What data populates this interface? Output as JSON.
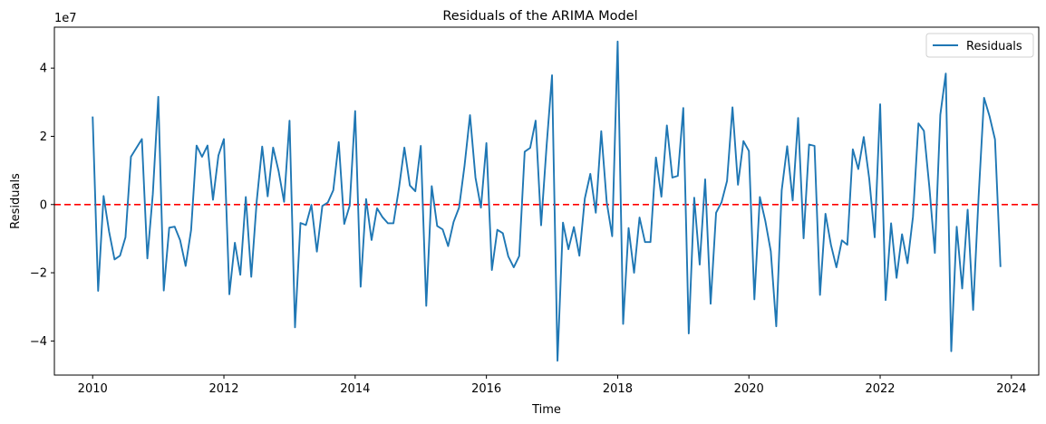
{
  "chart_data": {
    "type": "line",
    "title": "Residuals of the ARIMA Model",
    "xlabel": "Time",
    "ylabel": "Residuals",
    "y_scale_label": "1e7",
    "xlim": [
      "2009-06-01",
      "2024-06-01"
    ],
    "ylim": [
      -50000000,
      52000000
    ],
    "x_ticks": [
      "2010",
      "2012",
      "2014",
      "2016",
      "2018",
      "2020",
      "2022",
      "2024"
    ],
    "y_ticks": [
      "−4",
      "−2",
      "0",
      "2",
      "4"
    ],
    "legend": {
      "position": "top-right",
      "entries": [
        "Residuals"
      ]
    },
    "reference_line": {
      "y": 0,
      "style": "dashed",
      "color": "#ff0000"
    },
    "series": [
      {
        "name": "Residuals",
        "color": "#1f77b4",
        "x": [
          "2010-01",
          "2010-02",
          "2010-03",
          "2010-04",
          "2010-05",
          "2010-06",
          "2010-07",
          "2010-08",
          "2010-09",
          "2010-10",
          "2010-11",
          "2010-12",
          "2011-01",
          "2011-02",
          "2011-03",
          "2011-04",
          "2011-05",
          "2011-06",
          "2011-07",
          "2011-08",
          "2011-09",
          "2011-10",
          "2011-11",
          "2011-12",
          "2012-01",
          "2012-02",
          "2012-03",
          "2012-04",
          "2012-05",
          "2012-06",
          "2012-07",
          "2012-08",
          "2012-09",
          "2012-10",
          "2012-11",
          "2012-12",
          "2013-01",
          "2013-02",
          "2013-03",
          "2013-04",
          "2013-05",
          "2013-06",
          "2013-07",
          "2013-08",
          "2013-09",
          "2013-10",
          "2013-11",
          "2013-12",
          "2014-01",
          "2014-02",
          "2014-03",
          "2014-04",
          "2014-05",
          "2014-06",
          "2014-07",
          "2014-08",
          "2014-09",
          "2014-10",
          "2014-11",
          "2014-12",
          "2015-01",
          "2015-02",
          "2015-03",
          "2015-04",
          "2015-05",
          "2015-06",
          "2015-07",
          "2015-08",
          "2015-09",
          "2015-10",
          "2015-11",
          "2015-12",
          "2016-01",
          "2016-02",
          "2016-03",
          "2016-04",
          "2016-05",
          "2016-06",
          "2016-07",
          "2016-08",
          "2016-09",
          "2016-10",
          "2016-11",
          "2016-12",
          "2017-01",
          "2017-02",
          "2017-03",
          "2017-04",
          "2017-05",
          "2017-06",
          "2017-07",
          "2017-08",
          "2017-09",
          "2017-10",
          "2017-11",
          "2017-12",
          "2018-01",
          "2018-02",
          "2018-03",
          "2018-04",
          "2018-05",
          "2018-06",
          "2018-07",
          "2018-08",
          "2018-09",
          "2018-10",
          "2018-11",
          "2018-12",
          "2019-01",
          "2019-02",
          "2019-03",
          "2019-04",
          "2019-05",
          "2019-06",
          "2019-07",
          "2019-08",
          "2019-09",
          "2019-10",
          "2019-11",
          "2019-12",
          "2020-01",
          "2020-02",
          "2020-03",
          "2020-04",
          "2020-05",
          "2020-06",
          "2020-07",
          "2020-08",
          "2020-09",
          "2020-10",
          "2020-11",
          "2020-12",
          "2021-01",
          "2021-02",
          "2021-03",
          "2021-04",
          "2021-05",
          "2021-06",
          "2021-07",
          "2021-08",
          "2021-09",
          "2021-10",
          "2021-11",
          "2021-12",
          "2022-01",
          "2022-02",
          "2022-03",
          "2022-04",
          "2022-05",
          "2022-06",
          "2022-07",
          "2022-08",
          "2022-09",
          "2022-10",
          "2022-11",
          "2022-12",
          "2023-01",
          "2023-02",
          "2023-03",
          "2023-04",
          "2023-05",
          "2023-06",
          "2023-07",
          "2023-08",
          "2023-09",
          "2023-10",
          "2023-11"
        ],
        "values": [
          25800000,
          -25300000,
          2500000,
          -7900000,
          -16100000,
          -15000000,
          -9600000,
          14000000,
          16600000,
          19200000,
          -15800000,
          3100000,
          31600000,
          -25200000,
          -6800000,
          -6500000,
          -10500000,
          -18000000,
          -7500000,
          17300000,
          14000000,
          17300000,
          1400000,
          14400000,
          19200000,
          -26300000,
          -11200000,
          -20600000,
          2200000,
          -21200000,
          1000000,
          17000000,
          2400000,
          16700000,
          9800000,
          800000,
          24600000,
          -36000000,
          -5400000,
          -6000000,
          -100000,
          -13800000,
          -400000,
          600000,
          4200000,
          18300000,
          -5700000,
          -300000,
          27400000,
          -24100000,
          1600000,
          -10400000,
          -1100000,
          -3700000,
          -5500000,
          -5500000,
          4700000,
          16700000,
          5600000,
          3900000,
          17200000,
          -29700000,
          5400000,
          -6300000,
          -7300000,
          -12200000,
          -5100000,
          -900000,
          11400000,
          26200000,
          7900000,
          -900000,
          18000000,
          -19200000,
          -7400000,
          -8400000,
          -15200000,
          -18400000,
          -15100000,
          15500000,
          16600000,
          24600000,
          -6100000,
          17100000,
          37900000,
          -45800000,
          -5300000,
          -13100000,
          -6600000,
          -15000000,
          1800000,
          9000000,
          -2400000,
          21500000,
          700000,
          -9300000,
          47800000,
          -35000000,
          -6900000,
          -20000000,
          -3800000,
          -11000000,
          -11000000,
          13800000,
          2300000,
          23200000,
          7900000,
          8400000,
          28300000,
          -37800000,
          2000000,
          -17600000,
          7400000,
          -29100000,
          -2400000,
          700000,
          6900000,
          28500000,
          5800000,
          18600000,
          15700000,
          -27800000,
          2200000,
          -4800000,
          -13700000,
          -35700000,
          4200000,
          17100000,
          1200000,
          25400000,
          -9900000,
          17600000,
          17200000,
          -26500000,
          -2700000,
          -11800000,
          -18400000,
          -10500000,
          -11800000,
          16200000,
          10400000,
          19800000,
          7600000,
          -9600000,
          29400000,
          -28000000,
          -5500000,
          -21500000,
          -8700000,
          -17200000,
          -3600000,
          23800000,
          21600000,
          5100000,
          -14200000,
          26300000,
          38400000,
          -43000000,
          -6500000,
          -24600000,
          -1500000,
          -30900000,
          2200000,
          31300000,
          25900000,
          19100000,
          -18300000
        ]
      }
    ]
  }
}
